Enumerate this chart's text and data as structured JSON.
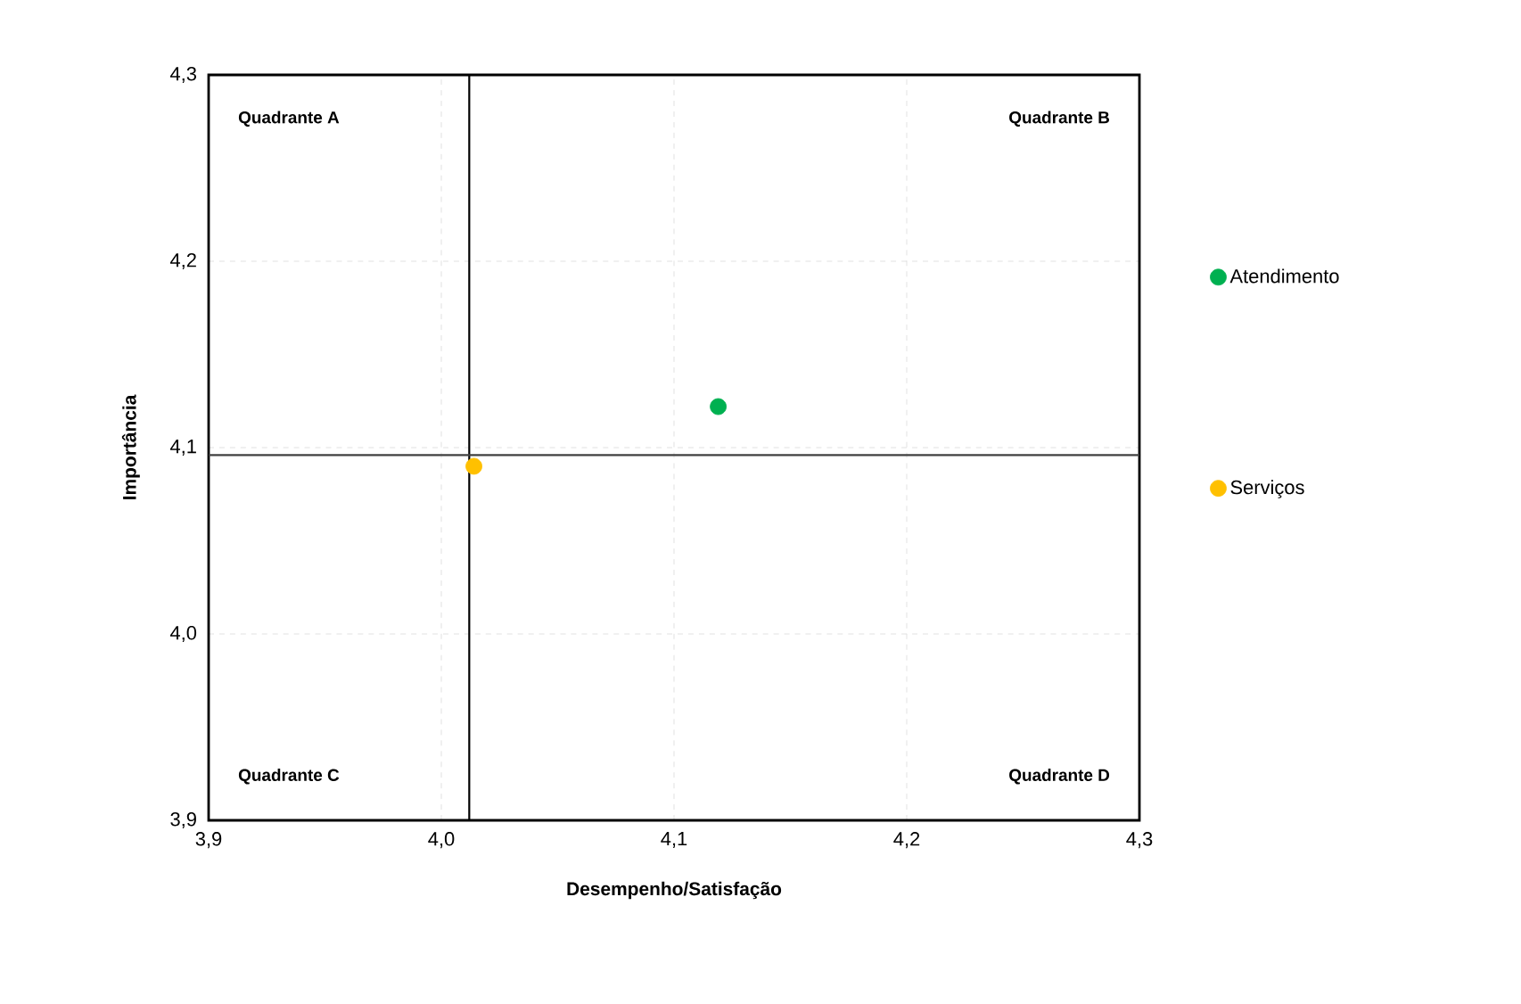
{
  "chart_data": {
    "type": "scatter",
    "xlabel": "Desempenho/Satisfação",
    "ylabel": "Importância",
    "series": [
      {
        "name": "Atendimento",
        "color": "#00b050",
        "x": [
          4.119
        ],
        "values": [
          4.122
        ]
      },
      {
        "name": "Serviços",
        "color": "#ffc000",
        "x": [
          4.014
        ],
        "values": [
          4.09
        ]
      }
    ],
    "xlim": [
      3.9,
      4.3
    ],
    "ylim": [
      3.9,
      4.3
    ],
    "xticks": [
      {
        "value": 3.9,
        "label": "3,9"
      },
      {
        "value": 4.0,
        "label": "4,0"
      },
      {
        "value": 4.1,
        "label": "4,1"
      },
      {
        "value": 4.2,
        "label": "4,2"
      },
      {
        "value": 4.3,
        "label": "4,3"
      }
    ],
    "yticks": [
      {
        "value": 3.9,
        "label": "3,9"
      },
      {
        "value": 4.0,
        "label": "4,0"
      },
      {
        "value": 4.1,
        "label": "4,1"
      },
      {
        "value": 4.2,
        "label": "4,2"
      },
      {
        "value": 4.3,
        "label": "4,3"
      }
    ],
    "ref_lines": [
      {
        "axis": "x",
        "value": 4.012,
        "color": "#000000"
      },
      {
        "axis": "y",
        "value": 4.096,
        "color": "#404040"
      }
    ],
    "annotations": [
      "Quadrante A",
      "Quadrante B",
      "Quadrante C",
      "Quadrante D"
    ],
    "grid": true,
    "legend": "right"
  }
}
